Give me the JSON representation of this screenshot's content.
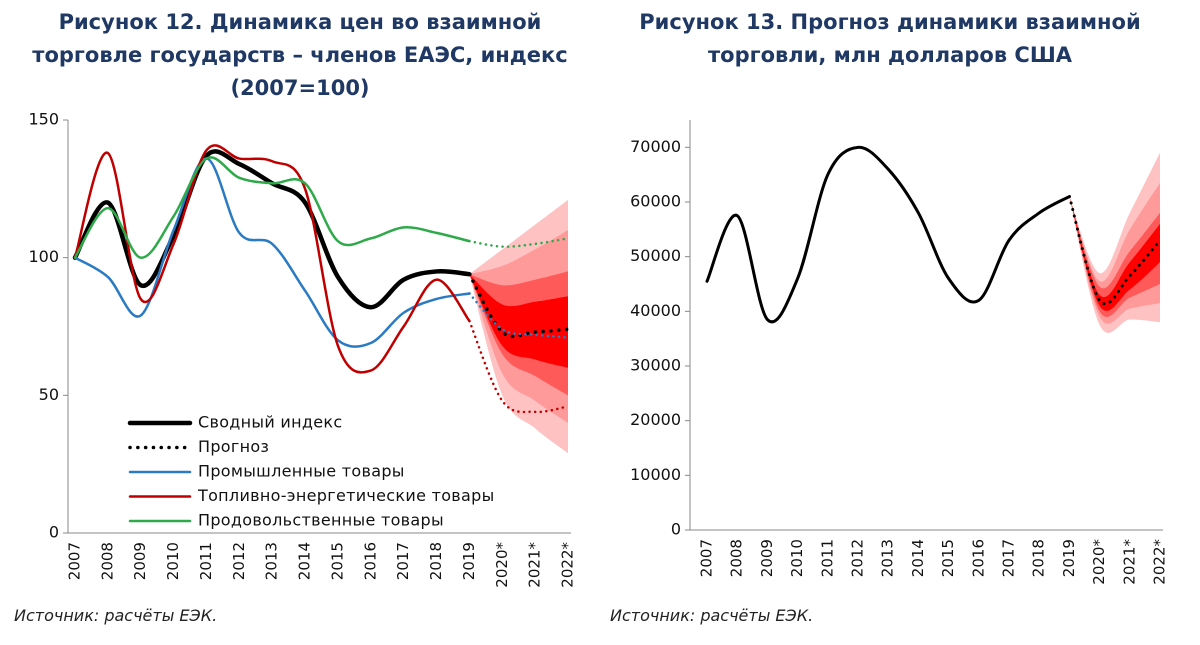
{
  "chart_data": [
    {
      "type": "line",
      "title": "Рисунок 12. Динамика цен во взаимной торговле государств – членов ЕАЭС, индекс (2007=100)",
      "source": "Источник: расчёты ЕЭК.",
      "categories": [
        "2007",
        "2008",
        "2009",
        "2010",
        "2011",
        "2012",
        "2013",
        "2014",
        "2015",
        "2016",
        "2017",
        "2018",
        "2019",
        "2020*",
        "2021*",
        "2022*"
      ],
      "ylim": [
        0,
        150
      ],
      "yticks": [
        0,
        50,
        100,
        150
      ],
      "grid": false,
      "legend": "lower left",
      "bands": [
        {
          "color": "#ffc2c2",
          "lower": [
            null,
            null,
            null,
            null,
            null,
            null,
            null,
            null,
            null,
            null,
            null,
            null,
            94,
            50,
            38,
            29
          ],
          "upper": [
            null,
            null,
            null,
            null,
            null,
            null,
            null,
            null,
            null,
            null,
            null,
            null,
            94,
            103,
            112,
            121
          ]
        },
        {
          "color": "#ff9a9a",
          "lower": [
            null,
            null,
            null,
            null,
            null,
            null,
            null,
            null,
            null,
            null,
            null,
            null,
            94,
            58,
            48,
            40
          ],
          "upper": [
            null,
            null,
            null,
            null,
            null,
            null,
            null,
            null,
            null,
            null,
            null,
            null,
            94,
            97,
            103,
            110
          ]
        },
        {
          "color": "#ff5a5a",
          "lower": [
            null,
            null,
            null,
            null,
            null,
            null,
            null,
            null,
            null,
            null,
            null,
            null,
            94,
            65,
            57,
            50
          ],
          "upper": [
            null,
            null,
            null,
            null,
            null,
            null,
            null,
            null,
            null,
            null,
            null,
            null,
            94,
            90,
            92,
            95
          ]
        },
        {
          "color": "#ff0000",
          "lower": [
            null,
            null,
            null,
            null,
            null,
            null,
            null,
            null,
            null,
            null,
            null,
            null,
            94,
            68,
            63,
            60
          ],
          "upper": [
            null,
            null,
            null,
            null,
            null,
            null,
            null,
            null,
            null,
            null,
            null,
            null,
            94,
            83,
            84,
            86
          ]
        }
      ],
      "series": [
        {
          "name": "Сводный индекс",
          "color": "#000000",
          "width": 4.5,
          "values": [
            100,
            120,
            90,
            108,
            137,
            134,
            127,
            120,
            93,
            82,
            92,
            95,
            94,
            null,
            null,
            null
          ]
        },
        {
          "name": "Прогноз",
          "color": "#000000",
          "width": 3.5,
          "style": "dotted",
          "values": [
            null,
            null,
            null,
            null,
            null,
            null,
            null,
            null,
            null,
            null,
            null,
            null,
            94,
            73,
            73,
            74
          ]
        },
        {
          "name": "Промышленные товары",
          "color": "#2a7ac4",
          "width": 2.5,
          "forecast_from": 12,
          "values": [
            100,
            93,
            79,
            110,
            136,
            109,
            105,
            88,
            70,
            69,
            80,
            85,
            87,
            74,
            72,
            71
          ]
        },
        {
          "name": "Топливно-энергетические товары",
          "color": "#c00000",
          "width": 2.5,
          "forecast_from": 12,
          "values": [
            100,
            138,
            85,
            105,
            139,
            136,
            135,
            125,
            68,
            59,
            75,
            92,
            77,
            48,
            44,
            46
          ]
        },
        {
          "name": "Продовольственные товары",
          "color": "#2eaa4a",
          "width": 2.5,
          "forecast_from": 12,
          "values": [
            100,
            118,
            100,
            115,
            136,
            129,
            127,
            127,
            106,
            107,
            111,
            109,
            106,
            104,
            105,
            107
          ]
        }
      ]
    },
    {
      "type": "line",
      "title": "Рисунок 13. Прогноз динамики взаимной торговли, млн долларов США",
      "source": "Источник: расчёты ЕЭК.",
      "categories": [
        "2007",
        "2008",
        "2009",
        "2010",
        "2011",
        "2012",
        "2013",
        "2014",
        "2015",
        "2016",
        "2017",
        "2018",
        "2019",
        "2020*",
        "2021*",
        "2022*"
      ],
      "ylim": [
        0,
        75000
      ],
      "yticks": [
        0,
        10000,
        20000,
        30000,
        40000,
        50000,
        60000,
        70000
      ],
      "grid": false,
      "bands": [
        {
          "color": "#ffc2c2",
          "lower": [
            null,
            null,
            null,
            null,
            null,
            null,
            null,
            null,
            null,
            null,
            null,
            null,
            61000,
            37500,
            38500,
            38000
          ],
          "upper": [
            null,
            null,
            null,
            null,
            null,
            null,
            null,
            null,
            null,
            null,
            null,
            null,
            61000,
            47000,
            58000,
            69000
          ]
        },
        {
          "color": "#ff9a9a",
          "lower": [
            null,
            null,
            null,
            null,
            null,
            null,
            null,
            null,
            null,
            null,
            null,
            null,
            61000,
            39000,
            40500,
            41500
          ],
          "upper": [
            null,
            null,
            null,
            null,
            null,
            null,
            null,
            null,
            null,
            null,
            null,
            null,
            61000,
            45500,
            55000,
            63500
          ]
        },
        {
          "color": "#ff5a5a",
          "lower": [
            null,
            null,
            null,
            null,
            null,
            null,
            null,
            null,
            null,
            null,
            null,
            null,
            61000,
            40000,
            42500,
            45000
          ],
          "upper": [
            null,
            null,
            null,
            null,
            null,
            null,
            null,
            null,
            null,
            null,
            null,
            null,
            61000,
            44500,
            51000,
            58000
          ]
        },
        {
          "color": "#ff0000",
          "lower": [
            null,
            null,
            null,
            null,
            null,
            null,
            null,
            null,
            null,
            null,
            null,
            null,
            61000,
            41000,
            44000,
            49000
          ],
          "upper": [
            null,
            null,
            null,
            null,
            null,
            null,
            null,
            null,
            null,
            null,
            null,
            null,
            61000,
            43000,
            49000,
            56000
          ]
        }
      ],
      "series": [
        {
          "color": "#000000",
          "width": 3,
          "forecast_from": 12,
          "values": [
            45500,
            57500,
            38500,
            46000,
            65000,
            70000,
            66000,
            58000,
            46000,
            42000,
            53000,
            58000,
            61000,
            42000,
            46500,
            53000
          ]
        }
      ]
    }
  ]
}
